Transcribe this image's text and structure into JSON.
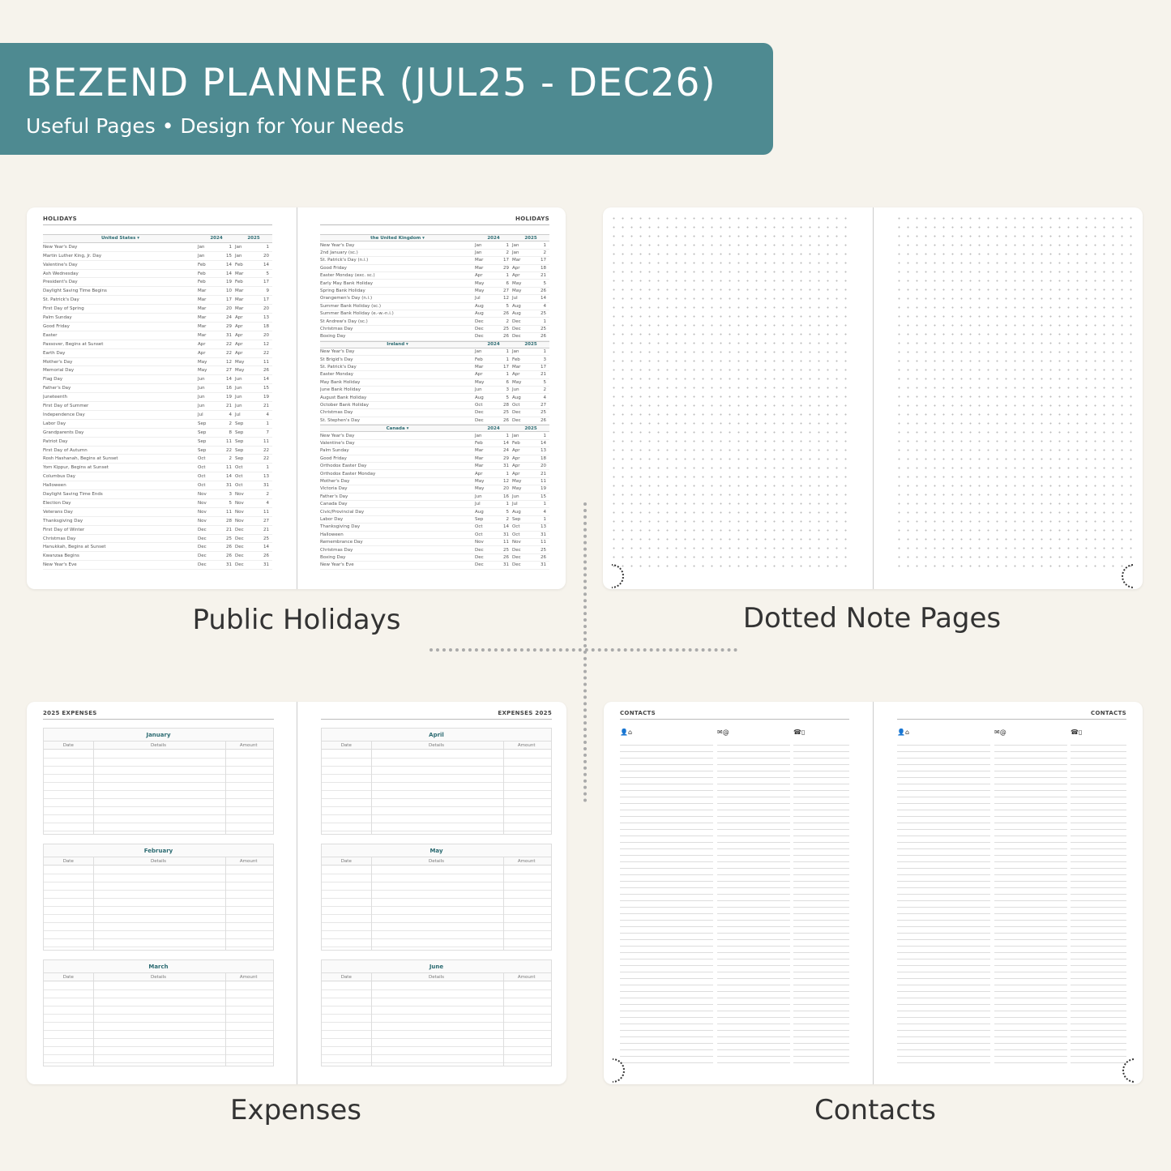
{
  "banner": {
    "title": "BEZEND PLANNER (JUL25 - DEC26)",
    "subtitle": "Useful Pages  •  Design for Your Needs",
    "color": "#4e8a91"
  },
  "captions": {
    "holidays": "Public Holidays",
    "dotted": "Dotted Note Pages",
    "expenses": "Expenses",
    "contacts": "Contacts"
  },
  "holidays": {
    "page_title": "HOLIDAYS",
    "years": [
      "2024",
      "2025"
    ],
    "left": [
      {
        "country": "United States",
        "rows": [
          [
            "New Year's Day",
            "Jan",
            "1",
            "Jan",
            "1"
          ],
          [
            "Martin Luther King, Jr. Day",
            "Jan",
            "15",
            "Jan",
            "20"
          ],
          [
            "Valentine's Day",
            "Feb",
            "14",
            "Feb",
            "14"
          ],
          [
            "Ash Wednesday",
            "Feb",
            "14",
            "Mar",
            "5"
          ],
          [
            "President's Day",
            "Feb",
            "19",
            "Feb",
            "17"
          ],
          [
            "Daylight Saving Time Begins",
            "Mar",
            "10",
            "Mar",
            "9"
          ],
          [
            "St. Patrick's Day",
            "Mar",
            "17",
            "Mar",
            "17"
          ],
          [
            "First Day of Spring",
            "Mar",
            "20",
            "Mar",
            "20"
          ],
          [
            "Palm Sunday",
            "Mar",
            "24",
            "Apr",
            "13"
          ],
          [
            "Good Friday",
            "Mar",
            "29",
            "Apr",
            "18"
          ],
          [
            "Easter",
            "Mar",
            "31",
            "Apr",
            "20"
          ],
          [
            "Passover, Begins at Sunset",
            "Apr",
            "22",
            "Apr",
            "12"
          ],
          [
            "Earth Day",
            "Apr",
            "22",
            "Apr",
            "22"
          ],
          [
            "Mother's Day",
            "May",
            "12",
            "May",
            "11"
          ],
          [
            "Memorial Day",
            "May",
            "27",
            "May",
            "26"
          ],
          [
            "Flag Day",
            "Jun",
            "14",
            "Jun",
            "14"
          ],
          [
            "Father's Day",
            "Jun",
            "16",
            "Jun",
            "15"
          ],
          [
            "Juneteenth",
            "Jun",
            "19",
            "Jun",
            "19"
          ],
          [
            "First Day of Summer",
            "Jun",
            "21",
            "Jun",
            "21"
          ],
          [
            "Independence Day",
            "Jul",
            "4",
            "Jul",
            "4"
          ],
          [
            "Labor Day",
            "Sep",
            "2",
            "Sep",
            "1"
          ],
          [
            "Grandparents Day",
            "Sep",
            "8",
            "Sep",
            "7"
          ],
          [
            "Patriot Day",
            "Sep",
            "11",
            "Sep",
            "11"
          ],
          [
            "First Day of Autumn",
            "Sep",
            "22",
            "Sep",
            "22"
          ],
          [
            "Rosh Hashanah, Begins at Sunset",
            "Oct",
            "2",
            "Sep",
            "22"
          ],
          [
            "Yom Kippur, Begins at Sunset",
            "Oct",
            "11",
            "Oct",
            "1"
          ],
          [
            "Columbus Day",
            "Oct",
            "14",
            "Oct",
            "13"
          ],
          [
            "Halloween",
            "Oct",
            "31",
            "Oct",
            "31"
          ],
          [
            "Daylight Saving Time Ends",
            "Nov",
            "3",
            "Nov",
            "2"
          ],
          [
            "Election Day",
            "Nov",
            "5",
            "Nov",
            "4"
          ],
          [
            "Veterans Day",
            "Nov",
            "11",
            "Nov",
            "11"
          ],
          [
            "Thanksgiving Day",
            "Nov",
            "28",
            "Nov",
            "27"
          ],
          [
            "First Day of Winter",
            "Dec",
            "21",
            "Dec",
            "21"
          ],
          [
            "Christmas Day",
            "Dec",
            "25",
            "Dec",
            "25"
          ],
          [
            "Hanukkah, Begins at Sunset",
            "Dec",
            "26",
            "Dec",
            "14"
          ],
          [
            "Kwanzaa Begins",
            "Dec",
            "26",
            "Dec",
            "26"
          ],
          [
            "New Year's Eve",
            "Dec",
            "31",
            "Dec",
            "31"
          ]
        ]
      }
    ],
    "right": [
      {
        "country": "the United Kingdom",
        "rows": [
          [
            "New Year's Day",
            "Jan",
            "1",
            "Jan",
            "1"
          ],
          [
            "2nd January (sc.)",
            "Jan",
            "2",
            "Jan",
            "2"
          ],
          [
            "St. Patrick's Day (n.i.)",
            "Mar",
            "17",
            "Mar",
            "17"
          ],
          [
            "Good Friday",
            "Mar",
            "29",
            "Apr",
            "18"
          ],
          [
            "Easter Monday (exc. sc.)",
            "Apr",
            "1",
            "Apr",
            "21"
          ],
          [
            "Early May Bank Holiday",
            "May",
            "6",
            "May",
            "5"
          ],
          [
            "Spring Bank Holiday",
            "May",
            "27",
            "May",
            "26"
          ],
          [
            "Orangemen's Day (n.i.)",
            "Jul",
            "12",
            "Jul",
            "14"
          ],
          [
            "Summer Bank Holiday (sc.)",
            "Aug",
            "5",
            "Aug",
            "4"
          ],
          [
            "Summer Bank Holiday (e.-w.-n.i.)",
            "Aug",
            "26",
            "Aug",
            "25"
          ],
          [
            "St Andrew's Day (sc.)",
            "Dec",
            "2",
            "Dec",
            "1"
          ],
          [
            "Christmas Day",
            "Dec",
            "25",
            "Dec",
            "25"
          ],
          [
            "Boxing Day",
            "Dec",
            "26",
            "Dec",
            "26"
          ]
        ]
      },
      {
        "country": "Ireland",
        "rows": [
          [
            "New Year's Day",
            "Jan",
            "1",
            "Jan",
            "1"
          ],
          [
            "St Brigid's Day",
            "Feb",
            "1",
            "Feb",
            "3"
          ],
          [
            "St. Patrick's Day",
            "Mar",
            "17",
            "Mar",
            "17"
          ],
          [
            "Easter Monday",
            "Apr",
            "1",
            "Apr",
            "21"
          ],
          [
            "May Bank Holiday",
            "May",
            "6",
            "May",
            "5"
          ],
          [
            "June Bank Holiday",
            "Jun",
            "3",
            "Jun",
            "2"
          ],
          [
            "August Bank Holiday",
            "Aug",
            "5",
            "Aug",
            "4"
          ],
          [
            "October Bank Holiday",
            "Oct",
            "28",
            "Oct",
            "27"
          ],
          [
            "Christmas Day",
            "Dec",
            "25",
            "Dec",
            "25"
          ],
          [
            "St. Stephen's Day",
            "Dec",
            "26",
            "Dec",
            "26"
          ]
        ]
      },
      {
        "country": "Canada",
        "rows": [
          [
            "New Year's Day",
            "Jan",
            "1",
            "Jan",
            "1"
          ],
          [
            "Valentine's Day",
            "Feb",
            "14",
            "Feb",
            "14"
          ],
          [
            "Palm Sunday",
            "Mar",
            "24",
            "Apr",
            "13"
          ],
          [
            "Good Friday",
            "Mar",
            "29",
            "Apr",
            "18"
          ],
          [
            "Orthodox Easter Day",
            "Mar",
            "31",
            "Apr",
            "20"
          ],
          [
            "Orthodox Easter Monday",
            "Apr",
            "1",
            "Apr",
            "21"
          ],
          [
            "Mother's Day",
            "May",
            "12",
            "May",
            "11"
          ],
          [
            "Victoria Day",
            "May",
            "20",
            "May",
            "19"
          ],
          [
            "Father's Day",
            "Jun",
            "16",
            "Jun",
            "15"
          ],
          [
            "Canada Day",
            "Jul",
            "1",
            "Jul",
            "1"
          ],
          [
            "Civic/Provincial Day",
            "Aug",
            "5",
            "Aug",
            "4"
          ],
          [
            "Labor Day",
            "Sep",
            "2",
            "Sep",
            "1"
          ],
          [
            "Thanksgiving Day",
            "Oct",
            "14",
            "Oct",
            "13"
          ],
          [
            "Halloween",
            "Oct",
            "31",
            "Oct",
            "31"
          ],
          [
            "Remembrance Day",
            "Nov",
            "11",
            "Nov",
            "11"
          ],
          [
            "Christmas Day",
            "Dec",
            "25",
            "Dec",
            "25"
          ],
          [
            "Boxing Day",
            "Dec",
            "26",
            "Dec",
            "26"
          ],
          [
            "New Year's Eve",
            "Dec",
            "31",
            "Dec",
            "31"
          ]
        ]
      }
    ]
  },
  "expenses": {
    "left_title": "2025 EXPENSES",
    "right_title": "EXPENSES 2025",
    "columns": [
      "Date",
      "Details",
      "Amount"
    ],
    "left_months": [
      "January",
      "February",
      "March"
    ],
    "right_months": [
      "April",
      "May",
      "June"
    ]
  },
  "contacts": {
    "page_title": "CONTACTS",
    "col_icons": [
      "👤⌂",
      "✉@",
      "☎▯"
    ]
  }
}
